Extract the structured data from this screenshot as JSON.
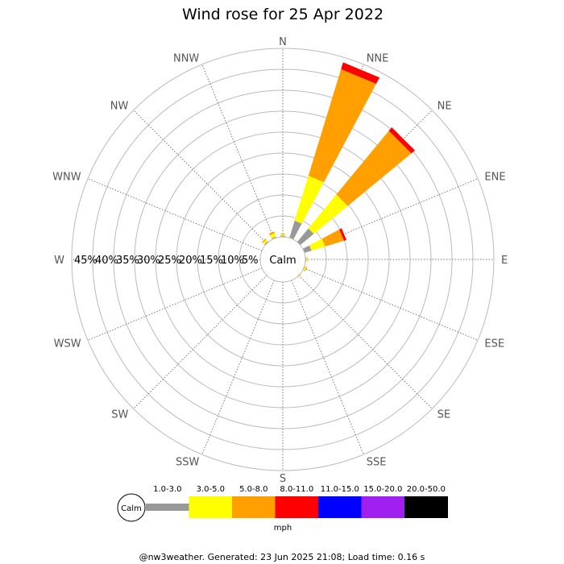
{
  "chart_data": {
    "type": "windrose",
    "title": "Wind rose for 25 Apr 2022",
    "directions": [
      "N",
      "NNE",
      "NE",
      "ENE",
      "E",
      "ESE",
      "SE",
      "SSE",
      "S",
      "SSW",
      "SW",
      "WSW",
      "W",
      "WNW",
      "NW",
      "NNW"
    ],
    "radial_ticks": [
      "5%",
      "10%",
      "15%",
      "20%",
      "25%",
      "30%",
      "35%",
      "40%",
      "45%"
    ],
    "radial_max_percent": 45,
    "calm_label": "Calm",
    "legend_title": "mph",
    "speed_bins": [
      {
        "label": "1.0-3.0",
        "color": "#999999"
      },
      {
        "label": "3.0-5.0",
        "color": "#ffff00"
      },
      {
        "label": "5.0-8.0",
        "color": "#ff9f00"
      },
      {
        "label": "8.0-11.0",
        "color": "#ff0000"
      },
      {
        "label": "11.0-15.0",
        "color": "#0000ff"
      },
      {
        "label": "15.0-20.0",
        "color": "#a020f0"
      },
      {
        "label": "20.0-50.0",
        "color": "#000000"
      }
    ],
    "series": [
      {
        "direction": "N",
        "cumulative": [
          0.3,
          0.6,
          0.7,
          0.7,
          0.7,
          0.7,
          0.7
        ]
      },
      {
        "direction": "NNE",
        "cumulative": [
          4.3,
          15.5,
          42.1,
          43.8,
          43.8,
          43.8,
          43.8
        ]
      },
      {
        "direction": "NE",
        "cumulative": [
          4.2,
          14.7,
          34.4,
          35.5,
          35.5,
          35.5,
          35.5
        ]
      },
      {
        "direction": "ENE",
        "cumulative": [
          1.8,
          5.2,
          9.9,
          10.5,
          10.5,
          10.5,
          10.5
        ]
      },
      {
        "direction": "E",
        "cumulative": [
          0.2,
          0.4,
          0.5,
          0.5,
          0.5,
          0.5,
          0.5
        ]
      },
      {
        "direction": "ESE",
        "cumulative": [
          0.2,
          0.5,
          0.7,
          0.7,
          0.7,
          0.7,
          0.7
        ]
      },
      {
        "direction": "SE",
        "cumulative": [
          0.1,
          0.2,
          0.3,
          0.3,
          0.3,
          0.3,
          0.3
        ]
      },
      {
        "direction": "NW",
        "cumulative": [
          0.3,
          0.8,
          1.1,
          1.1,
          1.1,
          1.1,
          1.1
        ]
      },
      {
        "direction": "NNW",
        "cumulative": [
          0.3,
          1.2,
          1.6,
          1.6,
          1.6,
          1.6,
          1.6
        ]
      }
    ]
  },
  "footer": "@nw3weather. Generated: 23 Jun 2025 21:08; Load time: 0.16 s"
}
